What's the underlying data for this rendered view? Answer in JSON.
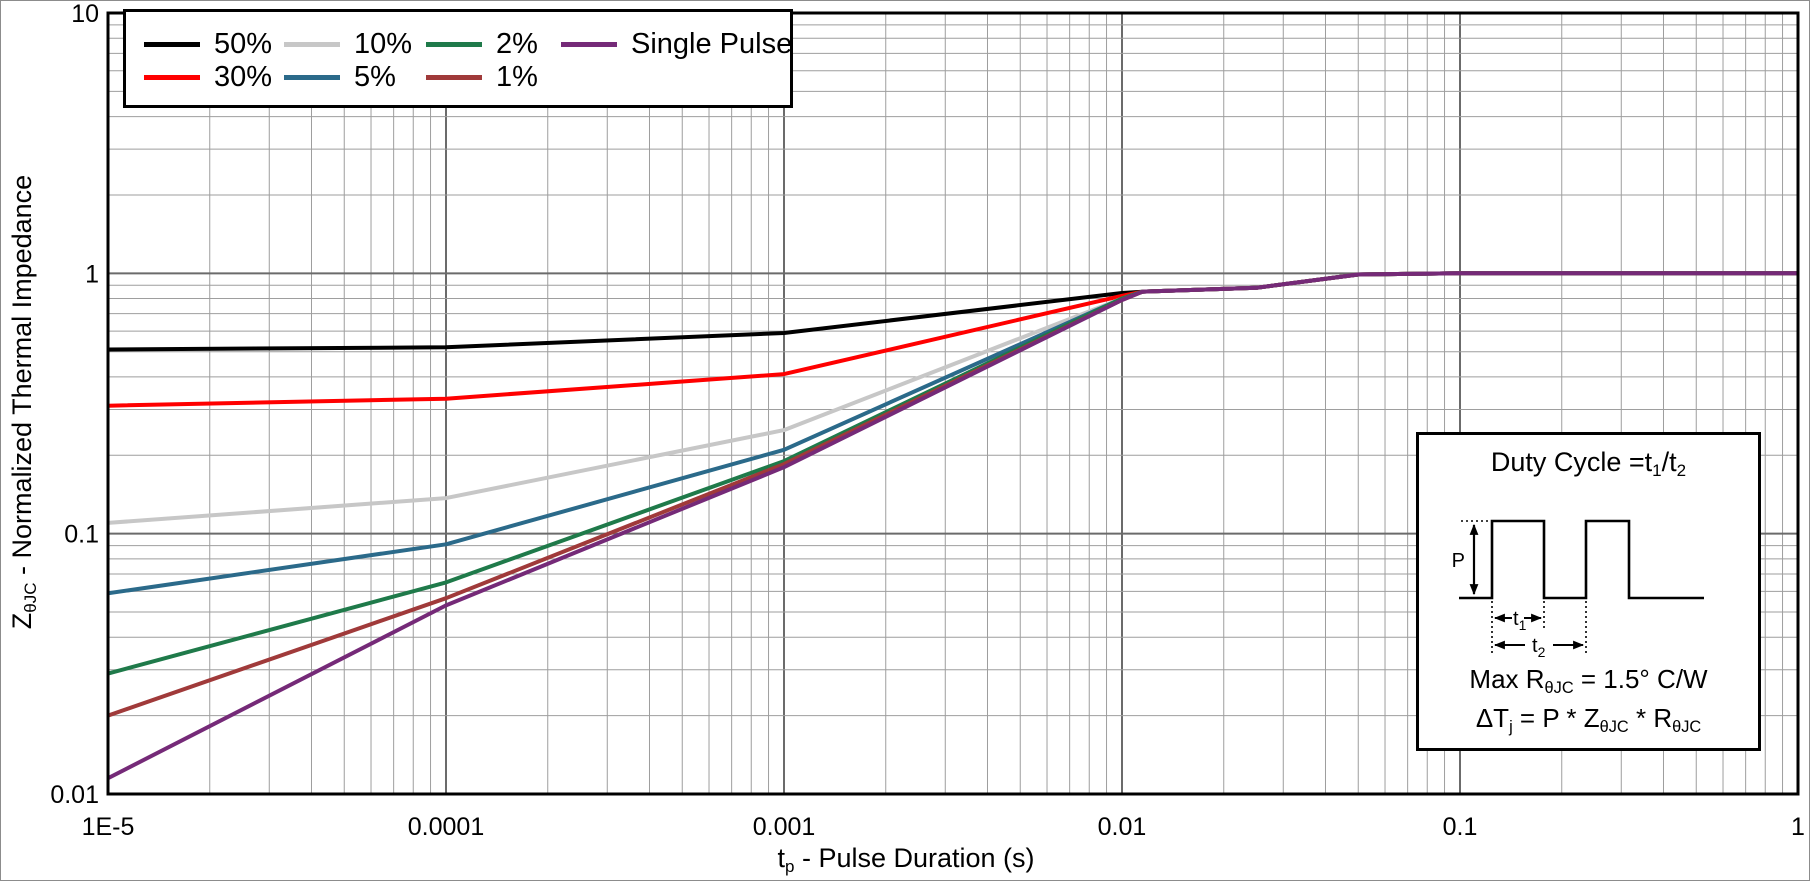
{
  "figure": {
    "background": "#ffffff",
    "outer_border_color": "#8c8c8c"
  },
  "chart_data": {
    "type": "line",
    "x_scale": "log",
    "y_scale": "log",
    "xlim": [
      1e-05,
      1
    ],
    "ylim": [
      0.01,
      10
    ],
    "xlabel": "tp - Pulse Duration (s)",
    "xlabel_parts": {
      "main": "t",
      "sub": "p",
      "rest": " - Pulse Duration (s)"
    },
    "ylabel": "ZθJC - Normalized Thermal Impedance",
    "ylabel_parts": {
      "main": "Z",
      "sub": "θJC",
      "rest": " - Normalized Thermal Impedance"
    },
    "x_ticks": [
      {
        "value": 1e-05,
        "label": "1E-5"
      },
      {
        "value": 0.0001,
        "label": "0.0001"
      },
      {
        "value": 0.001,
        "label": "0.001"
      },
      {
        "value": 0.01,
        "label": "0.01"
      },
      {
        "value": 0.1,
        "label": "0.1"
      },
      {
        "value": 1,
        "label": "1"
      }
    ],
    "y_ticks": [
      {
        "value": 10,
        "label": "10"
      },
      {
        "value": 1,
        "label": "1"
      },
      {
        "value": 0.1,
        "label": "0.1"
      },
      {
        "value": 0.01,
        "label": "0.01"
      }
    ],
    "grid": {
      "minor": true,
      "major": true,
      "log_decades": true
    },
    "legend_position": "top-left",
    "series": [
      {
        "name": "50%",
        "color": "#000000",
        "points": [
          [
            1e-05,
            0.51
          ],
          [
            0.0001,
            0.52
          ],
          [
            0.001,
            0.59
          ],
          [
            0.01,
            0.84
          ],
          [
            0.0115,
            0.85
          ],
          [
            0.025,
            0.88
          ],
          [
            0.05,
            0.99
          ],
          [
            0.1,
            1.0
          ],
          [
            1,
            1.0
          ]
        ]
      },
      {
        "name": "30%",
        "color": "#ff0000",
        "points": [
          [
            1e-05,
            0.31
          ],
          [
            0.0001,
            0.33
          ],
          [
            0.001,
            0.41
          ],
          [
            0.01,
            0.82
          ],
          [
            0.0115,
            0.85
          ],
          [
            0.025,
            0.88
          ],
          [
            0.05,
            0.99
          ],
          [
            0.1,
            1.0
          ],
          [
            1,
            1.0
          ]
        ]
      },
      {
        "name": "10%",
        "color": "#c7c7c7",
        "points": [
          [
            1e-05,
            0.11
          ],
          [
            0.0001,
            0.137
          ],
          [
            0.001,
            0.25
          ],
          [
            0.01,
            0.8
          ],
          [
            0.0115,
            0.85
          ],
          [
            0.025,
            0.88
          ],
          [
            0.05,
            0.99
          ],
          [
            0.1,
            1.0
          ],
          [
            1,
            1.0
          ]
        ]
      },
      {
        "name": "5%",
        "color": "#2b6a8a",
        "points": [
          [
            1e-05,
            0.059
          ],
          [
            0.0001,
            0.091
          ],
          [
            0.001,
            0.21
          ],
          [
            0.01,
            0.8
          ],
          [
            0.0115,
            0.85
          ],
          [
            0.025,
            0.88
          ],
          [
            0.05,
            0.99
          ],
          [
            0.1,
            1.0
          ],
          [
            1,
            1.0
          ]
        ]
      },
      {
        "name": "2%",
        "color": "#1f7a4a",
        "points": [
          [
            1e-05,
            0.029
          ],
          [
            0.0001,
            0.065
          ],
          [
            0.001,
            0.19
          ],
          [
            0.01,
            0.8
          ],
          [
            0.0115,
            0.85
          ],
          [
            0.025,
            0.88
          ],
          [
            0.05,
            0.99
          ],
          [
            0.1,
            1.0
          ],
          [
            1,
            1.0
          ]
        ]
      },
      {
        "name": "1%",
        "color": "#a03a3a",
        "points": [
          [
            1e-05,
            0.02
          ],
          [
            0.0001,
            0.0565
          ],
          [
            0.001,
            0.185
          ],
          [
            0.01,
            0.79
          ],
          [
            0.0115,
            0.85
          ],
          [
            0.025,
            0.88
          ],
          [
            0.05,
            0.99
          ],
          [
            0.1,
            1.0
          ],
          [
            1,
            1.0
          ]
        ]
      },
      {
        "name": "Single Pulse",
        "color": "#752a78",
        "points": [
          [
            1e-05,
            0.0115
          ],
          [
            0.0001,
            0.053
          ],
          [
            0.001,
            0.18
          ],
          [
            0.01,
            0.79
          ],
          [
            0.0115,
            0.85
          ],
          [
            0.025,
            0.88
          ],
          [
            0.05,
            0.99
          ],
          [
            0.1,
            1.0
          ],
          [
            1,
            1.0
          ]
        ]
      }
    ]
  },
  "inset": {
    "title": "Duty Cycle =t1/t2",
    "title_parts": {
      "p1": "Duty Cycle =t",
      "s1": "1",
      "p2": "/t",
      "s2": "2"
    },
    "waveform": {
      "p_label": "P",
      "t1_main": "t",
      "t1_sub": "1",
      "t2_main": "t",
      "t2_sub": "2"
    },
    "max_r": "Max RθJC = 1.5° C/W",
    "max_r_parts": {
      "p1": "Max R",
      "s1": "θJC",
      "p2": " = 1.5° C/W"
    },
    "delta_t": "ΔTj = P * ZθJC * RθJC",
    "delta_t_parts": {
      "p1": "ΔT",
      "s1": "j",
      "p2": " = P * Z",
      "s2": "θJC",
      "p3": " * R",
      "s3": "θJC"
    }
  }
}
